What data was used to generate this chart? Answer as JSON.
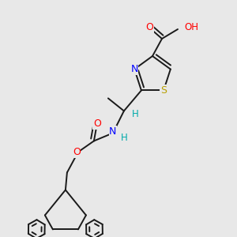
{
  "background_color": "#e8e8e8",
  "bond_color": "#1a1a1a",
  "bond_width": 1.4,
  "dbo": 0.014,
  "atom_colors": {
    "O": "#ff0000",
    "N": "#0000ff",
    "S": "#b8a000",
    "H": "#00aaaa"
  }
}
